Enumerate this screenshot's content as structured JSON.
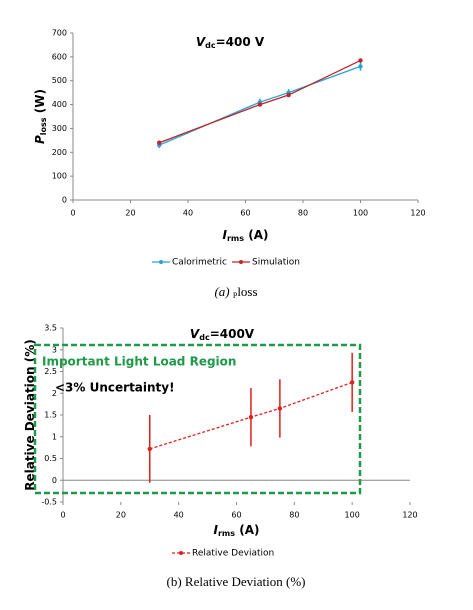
{
  "chart_data": [
    {
      "type": "line",
      "title": [
        "V",
        "dc",
        "=400 V"
      ],
      "x_label": [
        "I",
        "rms",
        " (A)"
      ],
      "y_label": [
        "P",
        "loss",
        " (W)"
      ],
      "caption": [
        "(a) ",
        "P",
        "loss"
      ],
      "x": [
        30,
        65,
        75,
        100
      ],
      "series": [
        {
          "name": "Calorimetric",
          "color": "#29a3d6",
          "values": [
            230,
            410,
            450,
            560
          ],
          "errors": [
            12,
            15,
            15,
            18
          ]
        },
        {
          "name": "Simulation",
          "color": "#c0262b",
          "values": [
            240,
            400,
            440,
            585
          ]
        }
      ],
      "xlim": [
        0,
        120
      ],
      "xticks": [
        0,
        20,
        40,
        60,
        80,
        100,
        120
      ],
      "ylim": [
        0,
        700
      ],
      "yticks": [
        0,
        100,
        200,
        300,
        400,
        500,
        600,
        700
      ]
    },
    {
      "type": "line",
      "title": [
        "V",
        "dc",
        "=400V"
      ],
      "x_label": [
        "I",
        "rms",
        " (A)"
      ],
      "y_label": [
        "Relative Deviation (%)"
      ],
      "caption": [
        "(b) Relative Deviation (%)"
      ],
      "annotations": [
        "Important Light Load Region",
        "<3% Uncertainty!"
      ],
      "x": [
        30,
        65,
        75,
        100
      ],
      "series": [
        {
          "name": "Relative Deviation",
          "color": "#e0201b",
          "linestyle": "dashed",
          "values": [
            0.72,
            1.45,
            1.65,
            2.25
          ],
          "errors": [
            0.78,
            0.67,
            0.67,
            0.68
          ]
        }
      ],
      "xlim": [
        0,
        120
      ],
      "xticks": [
        0,
        20,
        40,
        60,
        80,
        100,
        120
      ],
      "ylim": [
        -0.5,
        3.5
      ],
      "yticks": [
        -0.5,
        0,
        0.5,
        1,
        1.5,
        2,
        2.5,
        3,
        3.5
      ]
    }
  ]
}
